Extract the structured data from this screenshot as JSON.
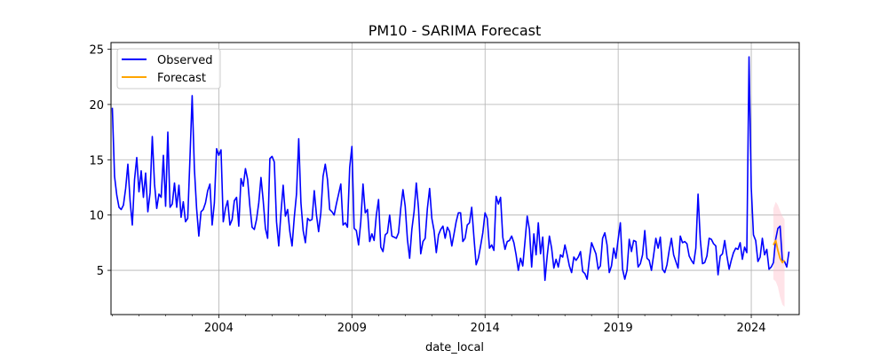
{
  "chart_data": {
    "type": "line",
    "title": "PM10 - SARIMA Forecast",
    "xlabel": "date_local",
    "ylabel": "",
    "xlim": [
      1999.95,
      2025.8
    ],
    "ylim": [
      1.0,
      25.6
    ],
    "xticks": [
      2004,
      2009,
      2014,
      2019,
      2024
    ],
    "yticks": [
      5,
      10,
      15,
      20,
      25
    ],
    "grid": true,
    "legend_position": "top-left",
    "series": [
      {
        "name": "Observed",
        "color": "#0000ff",
        "start": 2000.0,
        "step_months": 1,
        "values": [
          19.7,
          13.5,
          11.8,
          10.7,
          10.5,
          10.9,
          12.4,
          14.6,
          11.3,
          9.1,
          13.2,
          15.2,
          12.1,
          14.0,
          11.6,
          13.8,
          10.3,
          12.0,
          17.1,
          12.8,
          10.6,
          11.9,
          11.6,
          15.4,
          10.8,
          17.5,
          10.7,
          11.0,
          12.9,
          10.7,
          12.7,
          9.8,
          11.2,
          9.4,
          9.7,
          15.1,
          20.8,
          14.2,
          10.6,
          8.1,
          10.3,
          10.5,
          11.1,
          12.2,
          12.8,
          9.1,
          11.1,
          16.0,
          15.4,
          15.9,
          9.4,
          10.6,
          11.3,
          9.1,
          9.6,
          11.3,
          11.6,
          9.0,
          13.3,
          12.6,
          14.2,
          13.2,
          10.8,
          8.9,
          8.7,
          9.6,
          11.1,
          13.4,
          11.3,
          8.8,
          7.9,
          15.1,
          15.3,
          14.8,
          9.4,
          7.2,
          10.2,
          12.7,
          9.9,
          10.5,
          8.5,
          7.2,
          9.8,
          11.9,
          16.9,
          11.1,
          8.6,
          7.5,
          9.7,
          9.5,
          9.6,
          12.2,
          10.0,
          8.5,
          10.2,
          13.5,
          14.6,
          13.2,
          10.5,
          10.3,
          10.0,
          11.0,
          11.9,
          12.8,
          9.1,
          9.3,
          8.9,
          14.3,
          16.2,
          8.8,
          8.6,
          7.3,
          9.4,
          12.8,
          10.2,
          10.5,
          7.6,
          8.3,
          7.7,
          10.0,
          11.4,
          7.1,
          6.7,
          8.2,
          8.4,
          10.0,
          8.1,
          8.0,
          7.9,
          8.4,
          10.6,
          12.3,
          10.8,
          7.8,
          6.1,
          8.7,
          10.3,
          12.9,
          10.6,
          6.5,
          7.6,
          7.9,
          10.6,
          12.4,
          9.7,
          8.6,
          6.6,
          8.2,
          8.7,
          9.0,
          7.9,
          8.9,
          8.5,
          7.2,
          8.3,
          9.4,
          10.2,
          10.2,
          7.6,
          7.9,
          9.1,
          9.3,
          10.7,
          8.0,
          5.5,
          6.1,
          7.2,
          8.4,
          10.2,
          9.7,
          7.0,
          7.3,
          6.8,
          11.7,
          11.0,
          11.6,
          8.0,
          6.9,
          7.6,
          7.7,
          8.1,
          7.5,
          6.4,
          5.0,
          6.1,
          5.4,
          7.6,
          9.9,
          8.7,
          5.3,
          8.3,
          6.4,
          9.3,
          6.5,
          8.0,
          4.1,
          6.3,
          8.1,
          7.0,
          5.2,
          6.0,
          5.3,
          6.4,
          6.2,
          7.3,
          6.4,
          5.4,
          4.8,
          6.2,
          5.9,
          6.2,
          6.7,
          4.9,
          4.7,
          4.2,
          6.0,
          7.5,
          7.0,
          6.5,
          5.1,
          5.4,
          7.9,
          8.4,
          7.3,
          4.8,
          5.4,
          7.0,
          6.1,
          7.8,
          9.3,
          5.1,
          4.2,
          5.0,
          7.8,
          6.7,
          7.7,
          7.6,
          5.3,
          5.6,
          6.4,
          8.6,
          6.1,
          5.9,
          5.0,
          6.4,
          7.9,
          7.0,
          8.0,
          5.1,
          4.8,
          5.5,
          6.8,
          7.9,
          6.4,
          5.8,
          5.2,
          8.1,
          7.5,
          7.6,
          7.4,
          6.3,
          5.9,
          5.6,
          7.0,
          11.9,
          7.8,
          5.6,
          5.7,
          6.3,
          7.9,
          7.8,
          7.4,
          7.2,
          4.6,
          6.3,
          6.5,
          7.7,
          6.3,
          5.1,
          5.9,
          6.6,
          7.0,
          6.9,
          7.5,
          6.0,
          7.1,
          6.6,
          24.3,
          12.5,
          8.2,
          7.7,
          5.8,
          6.2,
          7.9,
          6.4,
          6.9,
          5.1,
          5.3,
          5.7,
          7.8,
          8.8,
          9.0,
          5.9,
          5.8,
          5.3,
          6.7
        ]
      },
      {
        "name": "Forecast",
        "color": "#ffa500",
        "x": [
          2024.83,
          2024.92,
          2025.0,
          2025.08,
          2025.17,
          2025.25
        ],
        "values": [
          7.3,
          7.7,
          6.8,
          6.1,
          5.7,
          5.9
        ],
        "ci_lower": [
          4.2,
          4.0,
          3.5,
          2.6,
          1.9,
          1.7
        ],
        "ci_upper": [
          10.6,
          11.2,
          10.9,
          10.4,
          9.9,
          9.6
        ],
        "ci_color": "#ffc0cb"
      }
    ]
  }
}
